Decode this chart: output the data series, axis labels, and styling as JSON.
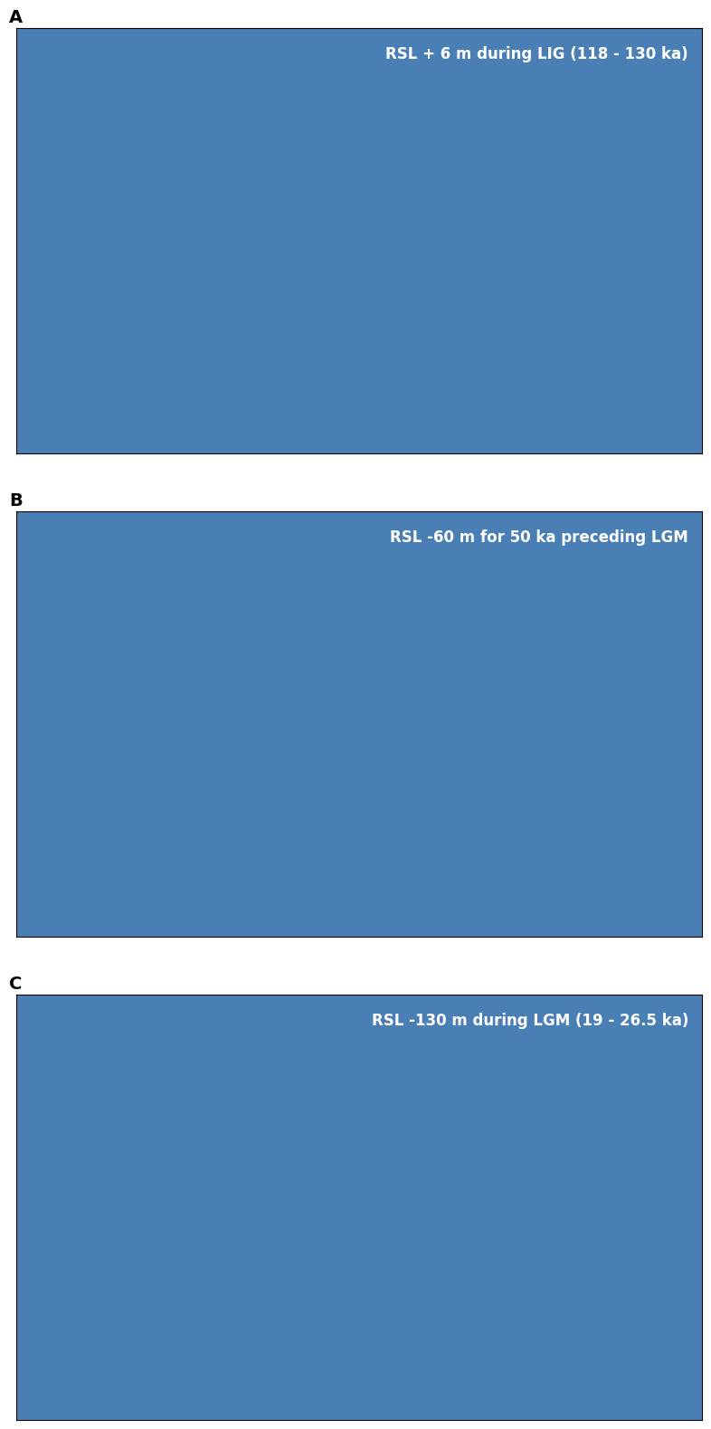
{
  "panels": [
    {
      "label": "A",
      "title": "RSL + 6 m during LIG (118 - 130 ka)",
      "sea_level_change": 6
    },
    {
      "label": "B",
      "title": "RSL -60 m for 50 ka preceding LGM",
      "sea_level_change": -60
    },
    {
      "label": "C",
      "title": "RSL -130 m during LGM (19 - 26.5 ka)",
      "sea_level_change": -130
    }
  ],
  "ocean_color": "#4a7fb5",
  "land_color": "#ffffff",
  "border_color": "#555555",
  "black_spot_color": "#000000",
  "title_color": "#ffffff",
  "title_fontsize": 12,
  "label_fontsize": 14,
  "panel_label_color": "#000000",
  "background": "#ffffff",
  "fig_width": 7.98,
  "fig_height": 16.1,
  "lon_min": -84.0,
  "lon_max": -77.0,
  "lat_min": 6.5,
  "lat_max": 10.5
}
